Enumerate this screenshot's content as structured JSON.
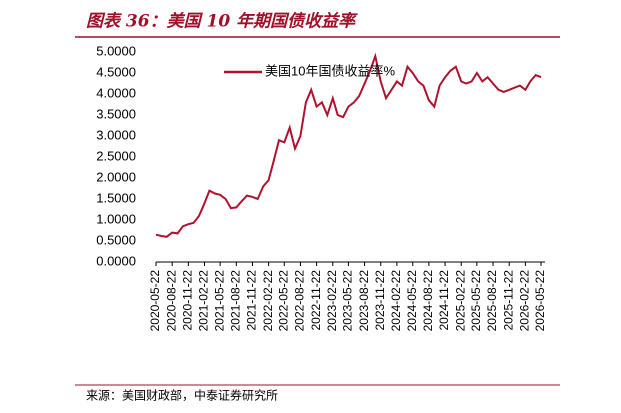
{
  "chart_data": {
    "type": "line",
    "title": "图表 36：美国 10 年期国债收益率",
    "source": "来源：美国财政部，中泰证券研究所",
    "x": [
      "2020-05-22",
      "2020-06-22",
      "2020-07-22",
      "2020-08-22",
      "2020-09-22",
      "2020-10-22",
      "2020-11-22",
      "2020-12-22",
      "2021-01-22",
      "2021-02-22",
      "2021-03-22",
      "2021-04-22",
      "2021-05-22",
      "2021-06-22",
      "2021-07-22",
      "2021-08-22",
      "2021-09-22",
      "2021-10-22",
      "2021-11-22",
      "2021-12-22",
      "2022-01-22",
      "2022-02-22",
      "2022-03-22",
      "2022-04-22",
      "2022-05-22",
      "2022-06-22",
      "2022-07-22",
      "2022-08-22",
      "2022-09-22",
      "2022-10-22",
      "2022-11-22",
      "2022-12-22",
      "2023-01-22",
      "2023-02-22",
      "2023-03-22",
      "2023-04-22",
      "2023-05-22",
      "2023-06-22",
      "2023-07-22",
      "2023-08-22",
      "2023-09-22",
      "2023-10-22",
      "2023-11-22",
      "2023-12-22",
      "2024-01-22",
      "2024-02-22",
      "2024-03-22",
      "2024-04-22",
      "2024-05-22",
      "2024-06-22",
      "2024-07-22",
      "2024-08-22",
      "2024-09-22",
      "2024-10-22",
      "2024-11-22",
      "2024-12-22",
      "2025-01-22",
      "2025-02-22",
      "2025-03-22",
      "2025-04-22",
      "2025-05-22",
      "2025-06-22",
      "2025-07-22",
      "2025-08-22",
      "2025-09-22",
      "2025-10-22",
      "2025-11-22",
      "2025-12-22",
      "2026-01-22",
      "2026-02-22",
      "2026-03-22",
      "2026-04-22",
      "2026-05-22"
    ],
    "series": [
      {
        "name": "美国10年国债收益率%",
        "color": "#b0122e",
        "values": [
          0.65,
          0.62,
          0.6,
          0.7,
          0.68,
          0.85,
          0.9,
          0.93,
          1.1,
          1.4,
          1.7,
          1.63,
          1.6,
          1.5,
          1.28,
          1.3,
          1.45,
          1.58,
          1.55,
          1.5,
          1.8,
          1.95,
          2.4,
          2.9,
          2.85,
          3.2,
          2.7,
          3.0,
          3.8,
          4.1,
          3.7,
          3.8,
          3.5,
          3.9,
          3.5,
          3.45,
          3.7,
          3.8,
          3.95,
          4.25,
          4.55,
          4.9,
          4.3,
          3.9,
          4.1,
          4.3,
          4.2,
          4.65,
          4.5,
          4.3,
          4.2,
          3.85,
          3.7,
          4.2,
          4.4,
          4.55,
          4.65,
          4.3,
          4.25,
          4.3,
          4.5,
          4.3,
          4.4,
          4.25,
          4.1,
          4.05,
          4.1,
          4.15,
          4.2,
          4.1,
          4.3,
          4.45,
          4.4
        ]
      }
    ],
    "xlim": [
      "2020-05-22",
      "2026-05-22"
    ],
    "xticks": [
      "2020-05-22",
      "2020-08-22",
      "2020-11-22",
      "2021-02-22",
      "2021-05-22",
      "2021-08-22",
      "2021-11-22",
      "2022-02-22",
      "2022-05-22",
      "2022-08-22",
      "2022-11-22",
      "2023-02-22",
      "2023-05-22",
      "2023-08-22",
      "2023-11-22",
      "2024-02-22",
      "2024-05-22",
      "2024-08-22",
      "2024-11-22",
      "2025-02-22",
      "2025-05-22",
      "2025-08-22",
      "2025-11-22",
      "2026-02-22",
      "2026-05-22"
    ],
    "ylim": [
      0,
      5
    ],
    "yticks": [
      {
        "value": 0,
        "label": "0.0000"
      },
      {
        "value": 0.5,
        "label": "0.5000"
      },
      {
        "value": 1,
        "label": "1.0000"
      },
      {
        "value": 1.5,
        "label": "1.5000"
      },
      {
        "value": 2,
        "label": "2.0000"
      },
      {
        "value": 2.5,
        "label": "2.5000"
      },
      {
        "value": 3,
        "label": "3.0000"
      },
      {
        "value": 3.5,
        "label": "3.5000"
      },
      {
        "value": 4,
        "label": "4.0000"
      },
      {
        "value": 4.5,
        "label": "4.5000"
      },
      {
        "value": 5,
        "label": "5.0000"
      }
    ],
    "grid": false
  }
}
